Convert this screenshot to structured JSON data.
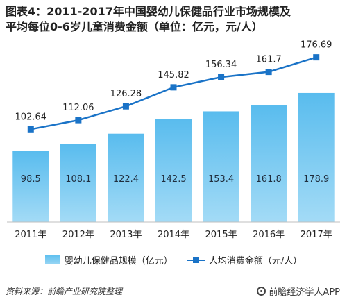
{
  "title": {
    "line1": "图表4：2011-2017年中国婴幼儿保健品行业市场规模及",
    "line2": "平均每位0-6岁儿童消费金额（单位：亿元，元/人）"
  },
  "chart_data": {
    "type": "bar",
    "categories": [
      "2011年",
      "2012年",
      "2013年",
      "2014年",
      "2015年",
      "2016年",
      "2017年"
    ],
    "series": [
      {
        "name": "婴幼儿保健品规模（亿元）",
        "kind": "bar",
        "values": [
          98.5,
          108.1,
          122.4,
          142.5,
          153.4,
          161.8,
          178.9
        ],
        "color": "#5bbdee"
      },
      {
        "name": "人均消费金额（元/人）",
        "kind": "line",
        "values": [
          102.64,
          112.06,
          126.28,
          145.82,
          156.34,
          161.7,
          176.69
        ],
        "color": "#1a73c7"
      }
    ],
    "bar_ylim": [
      0,
      200
    ],
    "line_ylim": [
      0,
      200
    ],
    "grid": false,
    "legend": "bottom"
  },
  "footer": {
    "source": "资料来源：前瞻产业研究院整理",
    "brand": "前瞻经济学人APP"
  }
}
